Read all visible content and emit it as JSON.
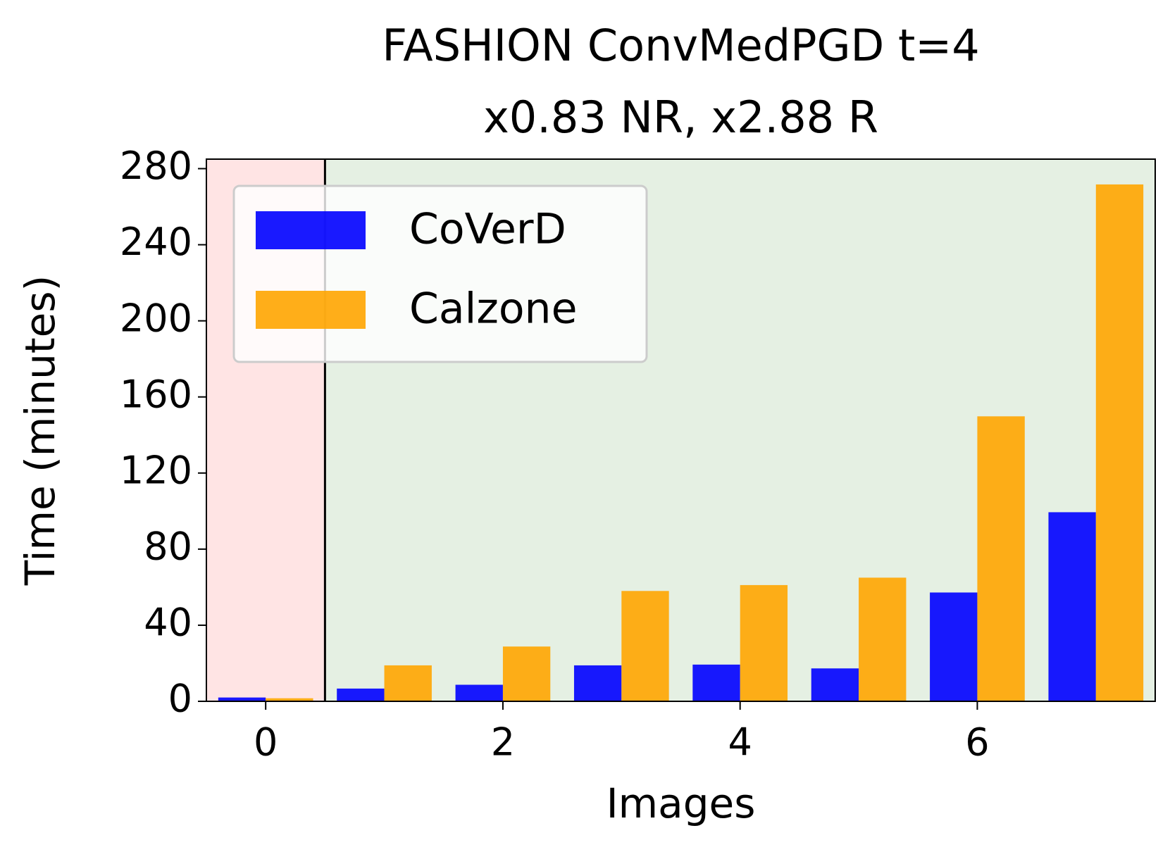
{
  "chart_data": {
    "type": "bar",
    "title": [
      "FASHION ConvMedPGD t=4",
      "x0.83 NR, x2.88 R"
    ],
    "x_label": "Images",
    "y_label": "Time (minutes)",
    "x": [
      0,
      1,
      2,
      3,
      4,
      5,
      6,
      7
    ],
    "series": [
      {
        "name": "CoVerD",
        "color": "#0000ff",
        "values": [
          2.0,
          6.7,
          8.7,
          18.9,
          19.3,
          17.3,
          57.2,
          99.4
        ]
      },
      {
        "name": "Calzone",
        "color": "#ffa500",
        "values": [
          1.6,
          18.9,
          28.8,
          58.0,
          61.1,
          65.0,
          149.8,
          271.7
        ]
      }
    ],
    "shaded_regions": [
      {
        "x": [
          -0.5,
          0.5
        ],
        "color": "#ffe4e4"
      },
      {
        "x": [
          0.5,
          7.5
        ],
        "color": "#e5f0e3"
      }
    ],
    "vline": 0.5,
    "xlim": [
      -0.5,
      7.5
    ],
    "xticks": [
      0,
      2,
      4,
      6
    ],
    "ylim": [
      0,
      285
    ],
    "yticks": [
      0,
      40,
      80,
      120,
      160,
      200,
      240,
      280
    ],
    "legend": "upper left"
  }
}
